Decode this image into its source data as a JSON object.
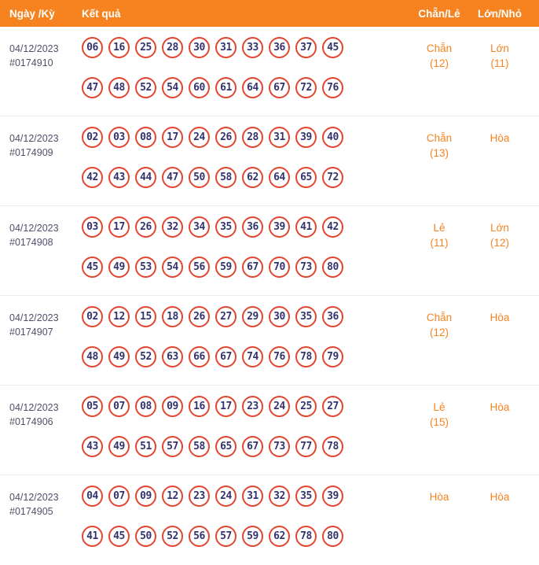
{
  "header": {
    "col_date": "Ngày /Kỳ",
    "col_result": "Kết quả",
    "col_parity": "Chẵn/Lẻ",
    "col_size": "Lớn/Nhỏ"
  },
  "colors": {
    "header_bg": "#F6831F",
    "accent_orange": "#F6831F",
    "ball_border_red": "#E2452F",
    "ball_number_navy": "#33336E",
    "date_text": "#524E6B",
    "row_divider": "#EAEAEA"
  },
  "rows": [
    {
      "date": "04/12/2023",
      "draw_id": "#0174910",
      "numbers_row1": [
        "06",
        "16",
        "25",
        "28",
        "30",
        "31",
        "33",
        "36",
        "37",
        "45"
      ],
      "numbers_row2": [
        "47",
        "48",
        "52",
        "54",
        "60",
        "61",
        "64",
        "67",
        "72",
        "76"
      ],
      "parity_label": "Chẵn",
      "parity_count": "(12)",
      "size_label": "Lớn",
      "size_count": "(11)"
    },
    {
      "date": "04/12/2023",
      "draw_id": "#0174909",
      "numbers_row1": [
        "02",
        "03",
        "08",
        "17",
        "24",
        "26",
        "28",
        "31",
        "39",
        "40"
      ],
      "numbers_row2": [
        "42",
        "43",
        "44",
        "47",
        "50",
        "58",
        "62",
        "64",
        "65",
        "72"
      ],
      "parity_label": "Chẵn",
      "parity_count": "(13)",
      "size_label": "Hòa",
      "size_count": ""
    },
    {
      "date": "04/12/2023",
      "draw_id": "#0174908",
      "numbers_row1": [
        "03",
        "17",
        "26",
        "32",
        "34",
        "35",
        "36",
        "39",
        "41",
        "42"
      ],
      "numbers_row2": [
        "45",
        "49",
        "53",
        "54",
        "56",
        "59",
        "67",
        "70",
        "73",
        "80"
      ],
      "parity_label": "Lẻ",
      "parity_count": "(11)",
      "size_label": "Lớn",
      "size_count": "(12)"
    },
    {
      "date": "04/12/2023",
      "draw_id": "#0174907",
      "numbers_row1": [
        "02",
        "12",
        "15",
        "18",
        "26",
        "27",
        "29",
        "30",
        "35",
        "36"
      ],
      "numbers_row2": [
        "48",
        "49",
        "52",
        "63",
        "66",
        "67",
        "74",
        "76",
        "78",
        "79"
      ],
      "parity_label": "Chẵn",
      "parity_count": "(12)",
      "size_label": "Hòa",
      "size_count": ""
    },
    {
      "date": "04/12/2023",
      "draw_id": "#0174906",
      "numbers_row1": [
        "05",
        "07",
        "08",
        "09",
        "16",
        "17",
        "23",
        "24",
        "25",
        "27"
      ],
      "numbers_row2": [
        "43",
        "49",
        "51",
        "57",
        "58",
        "65",
        "67",
        "73",
        "77",
        "78"
      ],
      "parity_label": "Lẻ",
      "parity_count": "(15)",
      "size_label": "Hòa",
      "size_count": ""
    },
    {
      "date": "04/12/2023",
      "draw_id": "#0174905",
      "numbers_row1": [
        "04",
        "07",
        "09",
        "12",
        "23",
        "24",
        "31",
        "32",
        "35",
        "39"
      ],
      "numbers_row2": [
        "41",
        "45",
        "50",
        "52",
        "56",
        "57",
        "59",
        "62",
        "78",
        "80"
      ],
      "parity_label": "Hòa",
      "parity_count": "",
      "size_label": "Hòa",
      "size_count": ""
    }
  ]
}
